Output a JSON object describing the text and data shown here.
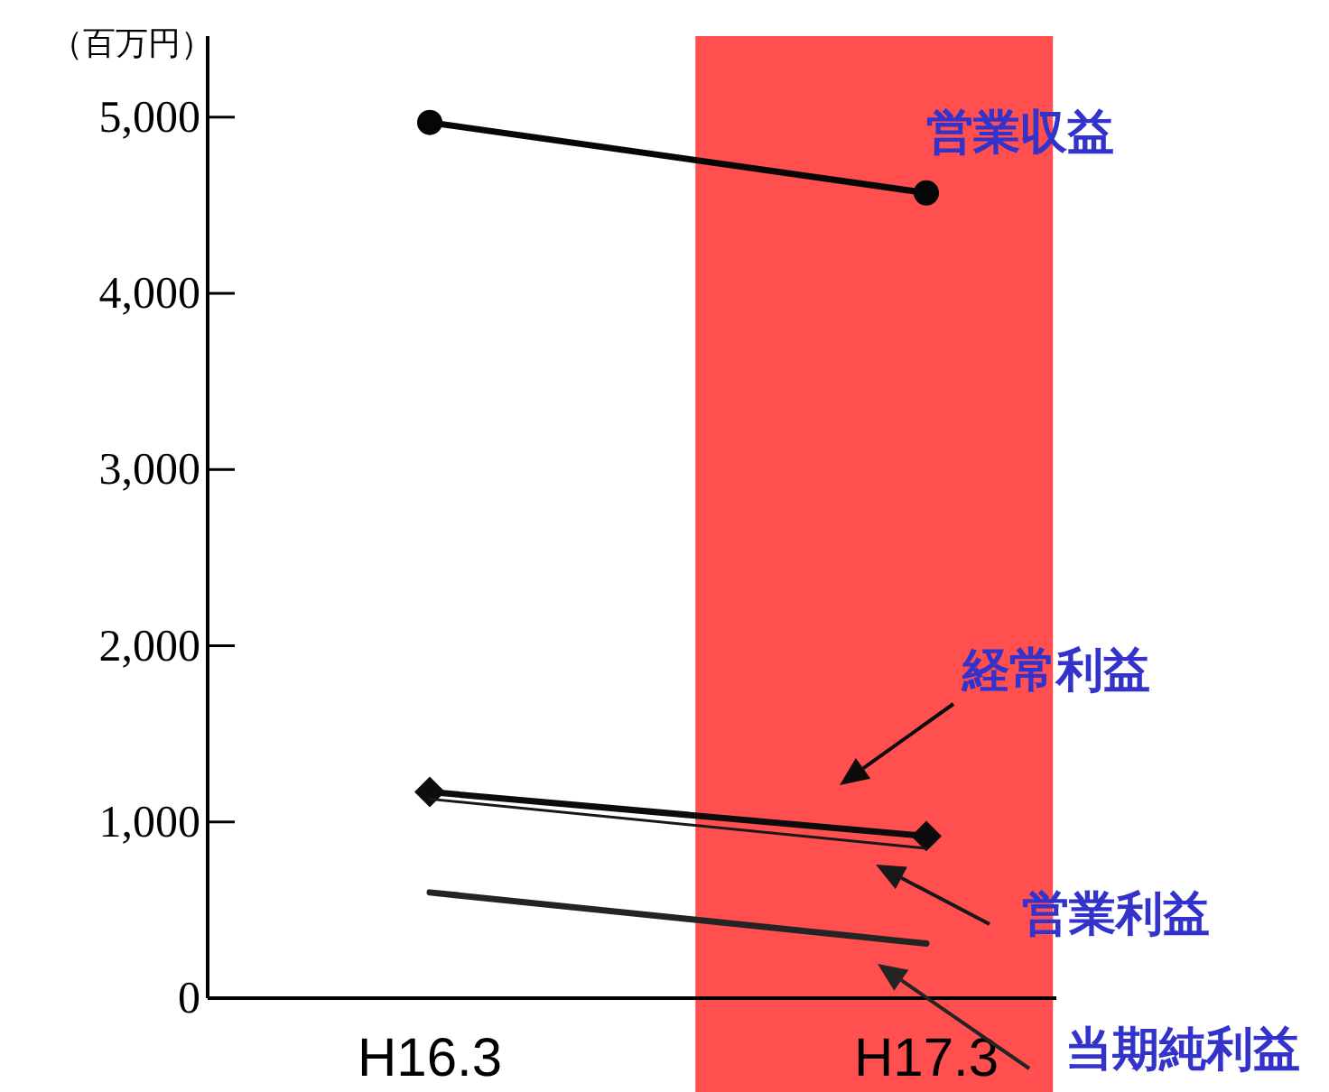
{
  "chart_data": {
    "type": "line",
    "ylabel": "（百万円）",
    "categories": [
      "H16.3",
      "H17.3"
    ],
    "series": [
      {
        "name": "営業収益",
        "color": "#060606",
        "marker": "circle",
        "values": [
          4970,
          4570
        ]
      },
      {
        "name": "経常利益",
        "color": "#0c0c0c",
        "marker": "diamond",
        "values": [
          1170,
          920
        ]
      },
      {
        "name": "営業利益",
        "color": "#181818",
        "marker": "none",
        "values": [
          1130,
          850
        ]
      },
      {
        "name": "当期純利益",
        "color": "#242424",
        "marker": "none",
        "values": [
          600,
          310
        ]
      }
    ],
    "ylim": [
      0,
      5460
    ],
    "yticks": [
      {
        "value": 0,
        "label": "0"
      },
      {
        "value": 1000,
        "label": "1,000"
      },
      {
        "value": 2000,
        "label": "2,000"
      },
      {
        "value": 3000,
        "label": "3,000"
      },
      {
        "value": 4000,
        "label": "4,000"
      },
      {
        "value": 5000,
        "label": "5,000"
      }
    ],
    "bands": [
      {
        "axis": "x",
        "from": "H17.3",
        "to": "H17.3",
        "color": "#ff4f4f"
      }
    ],
    "grid": false,
    "legend": "right"
  }
}
